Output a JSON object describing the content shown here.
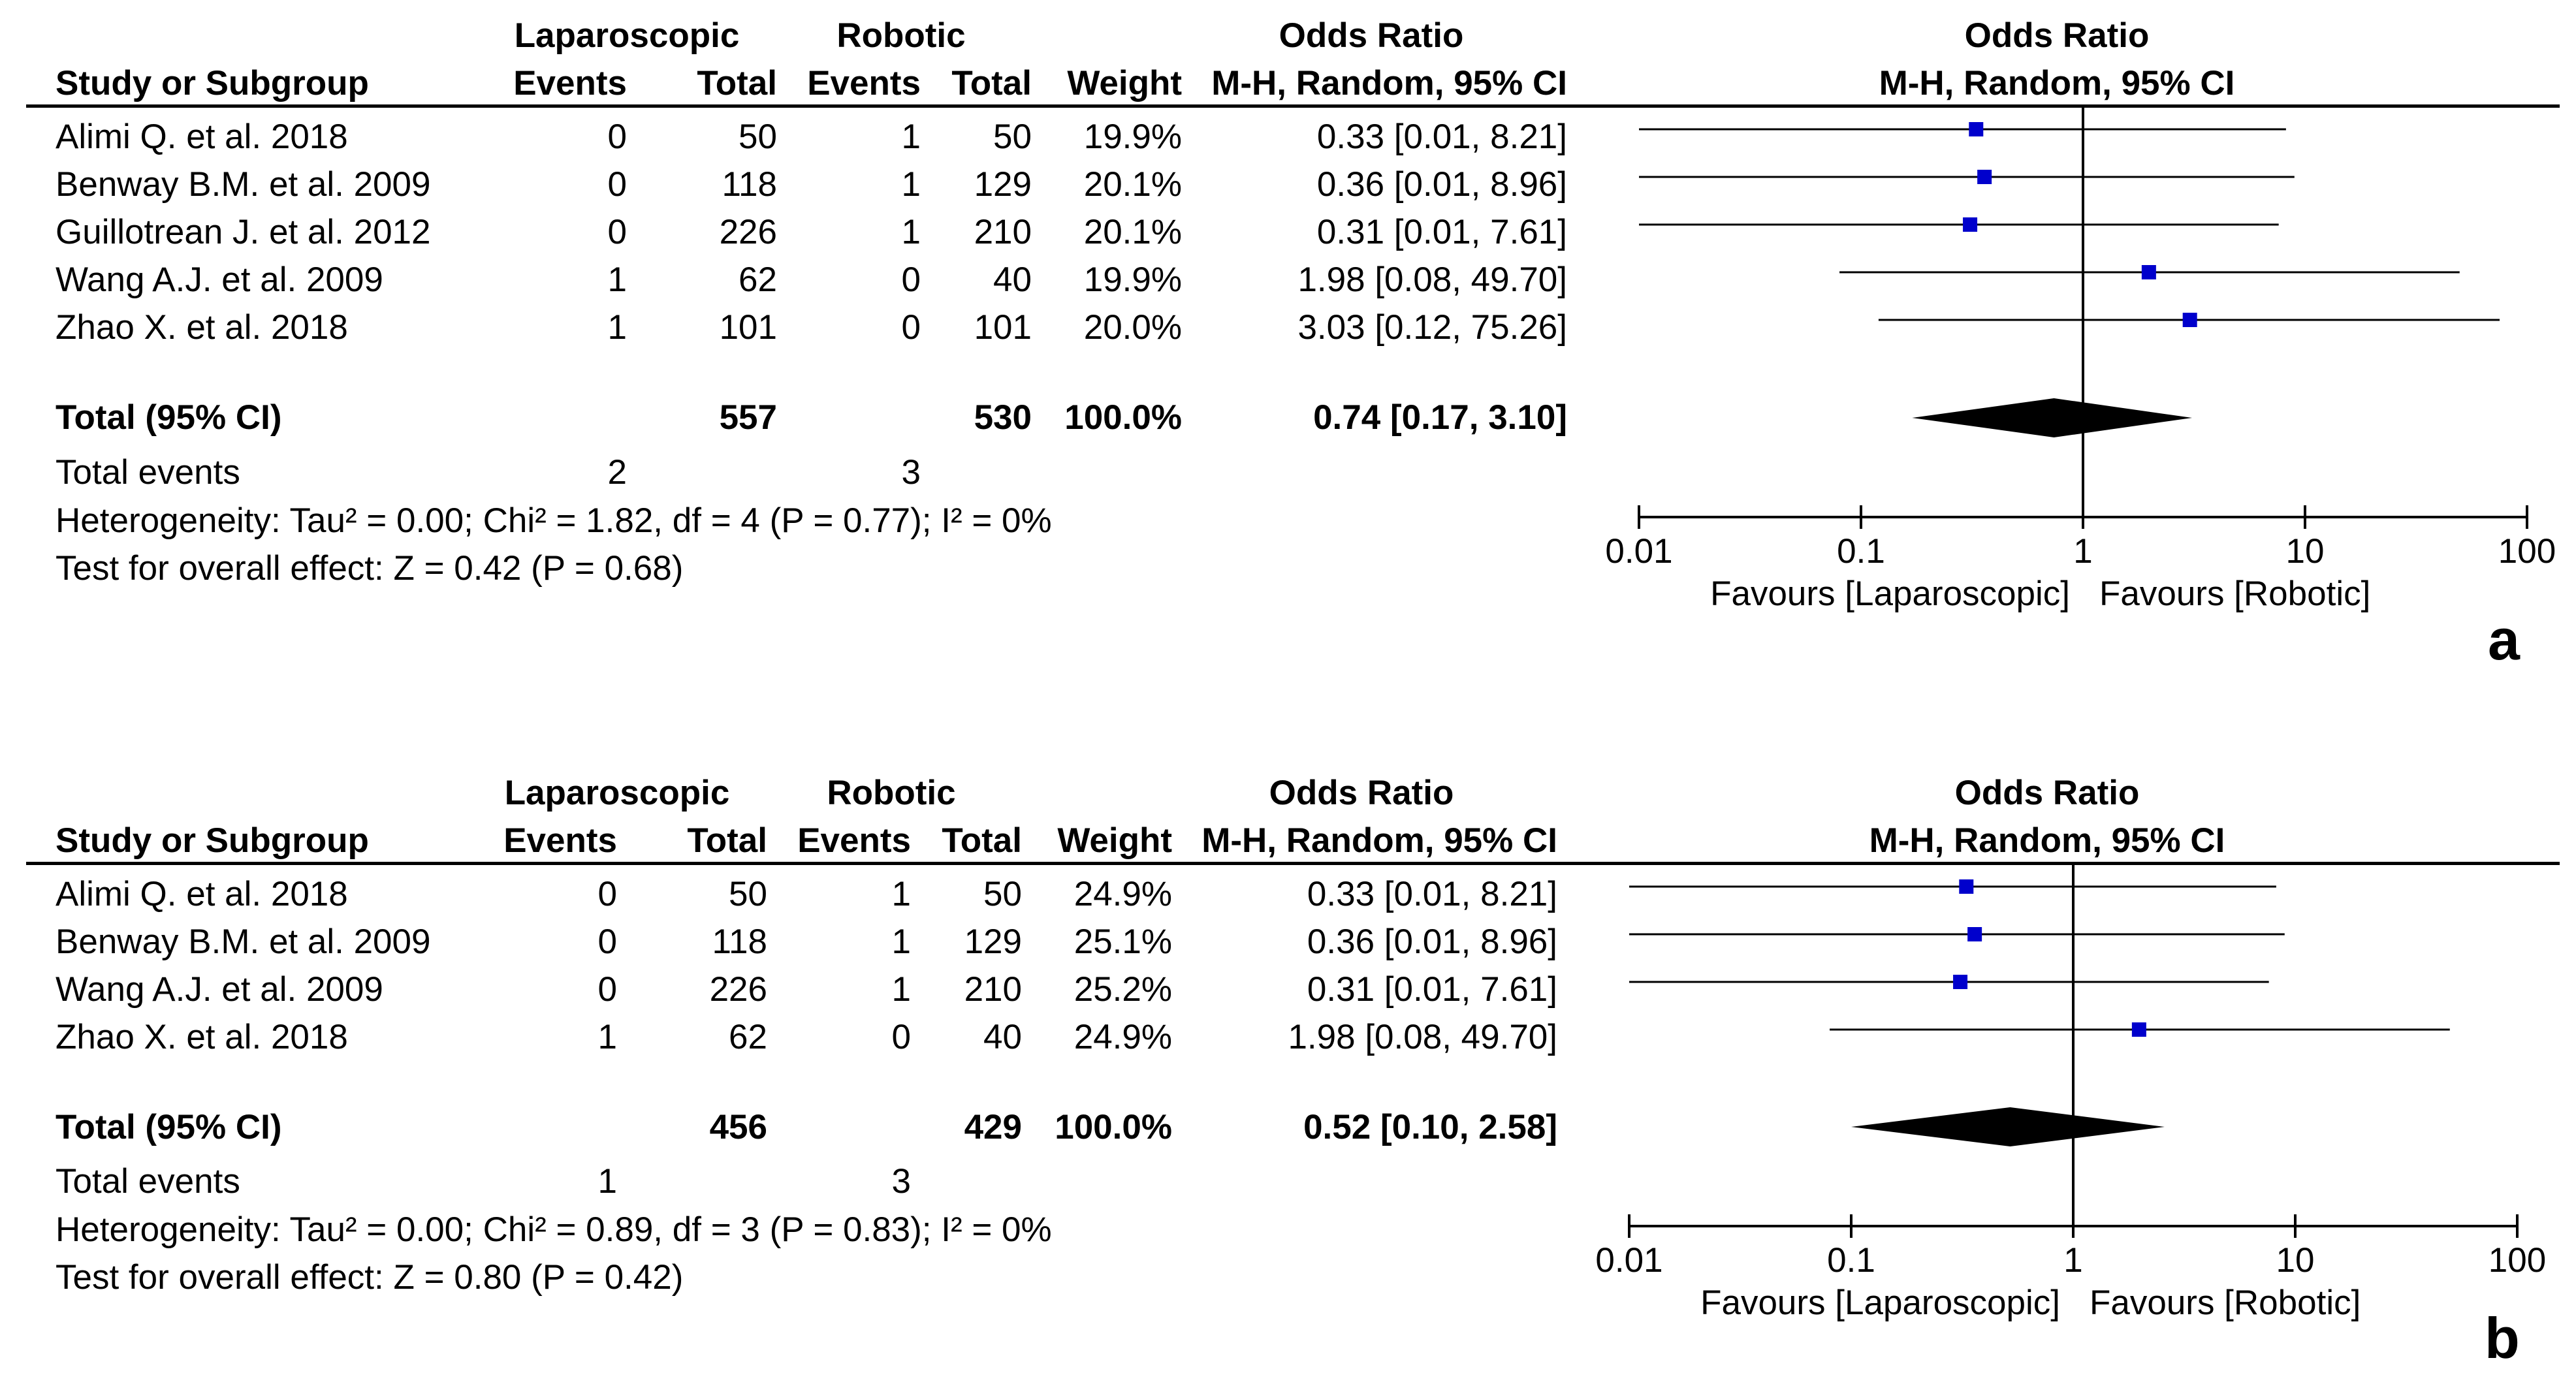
{
  "colors": {
    "marker": "#0000cc",
    "line": "#000000",
    "diamond": "#000000"
  },
  "panels": [
    {
      "label": "a",
      "header": {
        "group1": "Laparoscopic",
        "group2": "Robotic",
        "or_title": "Odds Ratio",
        "or_method": "M-H, Random, 95% CI",
        "col_study": "Study or Subgroup",
        "col_events1": "Events",
        "col_total1": "Total",
        "col_events2": "Events",
        "col_total2": "Total",
        "col_weight": "Weight",
        "col_ci": "M-H, Random, 95% CI",
        "plot_title": "Odds Ratio",
        "plot_method": "M-H, Random, 95% CI"
      },
      "studies": [
        {
          "name": "Alimi Q. et al. 2018",
          "e1": "0",
          "t1": "50",
          "e2": "1",
          "t2": "50",
          "weight": "19.9%",
          "ci": "0.33 [0.01, 8.21]"
        },
        {
          "name": "Benway B.M. et al. 2009",
          "e1": "0",
          "t1": "118",
          "e2": "1",
          "t2": "129",
          "weight": "20.1%",
          "ci": "0.36 [0.01, 8.96]"
        },
        {
          "name": "Guillotrean J. et al. 2012",
          "e1": "0",
          "t1": "226",
          "e2": "1",
          "t2": "210",
          "weight": "20.1%",
          "ci": "0.31 [0.01, 7.61]"
        },
        {
          "name": "Wang A.J. et al. 2009",
          "e1": "1",
          "t1": "62",
          "e2": "0",
          "t2": "40",
          "weight": "19.9%",
          "ci": "1.98 [0.08, 49.70]"
        },
        {
          "name": "Zhao X. et al. 2018",
          "e1": "1",
          "t1": "101",
          "e2": "0",
          "t2": "101",
          "weight": "20.0%",
          "ci": "3.03 [0.12, 75.26]"
        }
      ],
      "total": {
        "label": "Total (95% CI)",
        "t1": "557",
        "t2": "530",
        "weight": "100.0%",
        "ci": "0.74 [0.17, 3.10]"
      },
      "events": {
        "label": "Total events",
        "e1": "2",
        "e2": "3"
      },
      "heterogeneity": "Heterogeneity: Tau² = 0.00; Chi² = 1.82, df = 4 (P = 0.77); I² = 0%",
      "overall_effect": "Test for overall effect: Z = 0.42 (P = 0.68)",
      "favours_left": "Favours [Laparoscopic]",
      "favours_right": "Favours [Robotic]"
    },
    {
      "label": "b",
      "header": {
        "group1": "Laparoscopic",
        "group2": "Robotic",
        "or_title": "Odds Ratio",
        "or_method": "M-H, Random, 95% CI",
        "col_study": "Study or Subgroup",
        "col_events1": "Events",
        "col_total1": "Total",
        "col_events2": "Events",
        "col_total2": "Total",
        "col_weight": "Weight",
        "col_ci": "M-H, Random, 95% CI",
        "plot_title": "Odds Ratio",
        "plot_method": "M-H, Random, 95% CI"
      },
      "studies": [
        {
          "name": "Alimi Q. et al. 2018",
          "e1": "0",
          "t1": "50",
          "e2": "1",
          "t2": "50",
          "weight": "24.9%",
          "ci": "0.33 [0.01, 8.21]"
        },
        {
          "name": "Benway B.M. et al. 2009",
          "e1": "0",
          "t1": "118",
          "e2": "1",
          "t2": "129",
          "weight": "25.1%",
          "ci": "0.36 [0.01, 8.96]"
        },
        {
          "name": "Wang A.J. et al. 2009",
          "e1": "0",
          "t1": "226",
          "e2": "1",
          "t2": "210",
          "weight": "25.2%",
          "ci": "0.31 [0.01, 7.61]"
        },
        {
          "name": "Zhao X. et al. 2018",
          "e1": "1",
          "t1": "62",
          "e2": "0",
          "t2": "40",
          "weight": "24.9%",
          "ci": "1.98 [0.08, 49.70]"
        }
      ],
      "total": {
        "label": "Total (95% CI)",
        "t1": "456",
        "t2": "429",
        "weight": "100.0%",
        "ci": "0.52 [0.10, 2.58]"
      },
      "events": {
        "label": "Total events",
        "e1": "1",
        "e2": "3"
      },
      "heterogeneity": "Heterogeneity: Tau² = 0.00; Chi² = 0.89, df = 3 (P = 0.83); I² = 0%",
      "overall_effect": "Test for overall effect: Z = 0.80 (P = 0.42)",
      "favours_left": "Favours [Laparoscopic]",
      "favours_right": "Favours [Robotic]"
    }
  ],
  "chart_data": [
    {
      "type": "forest",
      "title": "Odds Ratio M-H, Random, 95% CI",
      "xscale": "log",
      "xlim": [
        0.01,
        100
      ],
      "xticks": [
        0.01,
        0.1,
        1,
        10,
        100
      ],
      "xtick_labels": [
        "0.01",
        "0.1",
        "1",
        "10",
        "100"
      ],
      "reference_line": 1,
      "points": [
        {
          "study": "Alimi Q. et al. 2018",
          "or": 0.33,
          "lo": 0.01,
          "hi": 8.21,
          "weight": 19.9
        },
        {
          "study": "Benway B.M. et al. 2009",
          "or": 0.36,
          "lo": 0.01,
          "hi": 8.96,
          "weight": 20.1
        },
        {
          "study": "Guillotrean J. et al. 2012",
          "or": 0.31,
          "lo": 0.01,
          "hi": 7.61,
          "weight": 20.1
        },
        {
          "study": "Wang A.J. et al. 2009",
          "or": 1.98,
          "lo": 0.08,
          "hi": 49.7,
          "weight": 19.9
        },
        {
          "study": "Zhao X. et al. 2018",
          "or": 3.03,
          "lo": 0.12,
          "hi": 75.26,
          "weight": 20.0
        }
      ],
      "pooled": {
        "or": 0.74,
        "lo": 0.17,
        "hi": 3.1
      }
    },
    {
      "type": "forest",
      "title": "Odds Ratio M-H, Random, 95% CI",
      "xscale": "log",
      "xlim": [
        0.01,
        100
      ],
      "xticks": [
        0.01,
        0.1,
        1,
        10,
        100
      ],
      "xtick_labels": [
        "0.01",
        "0.1",
        "1",
        "10",
        "100"
      ],
      "reference_line": 1,
      "points": [
        {
          "study": "Alimi Q. et al. 2018",
          "or": 0.33,
          "lo": 0.01,
          "hi": 8.21,
          "weight": 24.9
        },
        {
          "study": "Benway B.M. et al. 2009",
          "or": 0.36,
          "lo": 0.01,
          "hi": 8.96,
          "weight": 25.1
        },
        {
          "study": "Wang A.J. et al. 2009",
          "or": 0.31,
          "lo": 0.01,
          "hi": 7.61,
          "weight": 25.2
        },
        {
          "study": "Zhao X. et al. 2018",
          "or": 1.98,
          "lo": 0.08,
          "hi": 49.7,
          "weight": 24.9
        }
      ],
      "pooled": {
        "or": 0.52,
        "lo": 0.1,
        "hi": 2.58
      }
    }
  ]
}
